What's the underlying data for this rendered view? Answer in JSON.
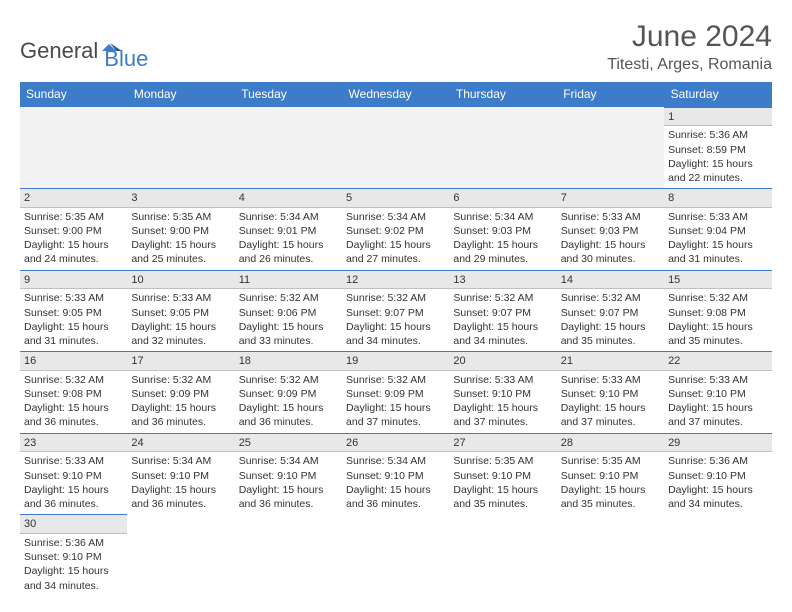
{
  "logo": {
    "text_general": "General",
    "text_blue": "Blue",
    "icon_color": "#3d7cc9"
  },
  "title": "June 2024",
  "location": "Titesti, Arges, Romania",
  "colors": {
    "header_bg": "#3d7cc9",
    "header_text": "#ffffff",
    "daynum_bg": "#e8e8e8",
    "text": "#333333",
    "border_blue": "#3d7cc9",
    "border_gray": "#bfbfbf"
  },
  "weekdays": [
    "Sunday",
    "Monday",
    "Tuesday",
    "Wednesday",
    "Thursday",
    "Friday",
    "Saturday"
  ],
  "weeks": [
    [
      null,
      null,
      null,
      null,
      null,
      null,
      {
        "n": "1",
        "sr": "Sunrise: 5:36 AM",
        "ss": "Sunset: 8:59 PM",
        "d1": "Daylight: 15 hours",
        "d2": "and 22 minutes."
      }
    ],
    [
      {
        "n": "2",
        "sr": "Sunrise: 5:35 AM",
        "ss": "Sunset: 9:00 PM",
        "d1": "Daylight: 15 hours",
        "d2": "and 24 minutes."
      },
      {
        "n": "3",
        "sr": "Sunrise: 5:35 AM",
        "ss": "Sunset: 9:00 PM",
        "d1": "Daylight: 15 hours",
        "d2": "and 25 minutes."
      },
      {
        "n": "4",
        "sr": "Sunrise: 5:34 AM",
        "ss": "Sunset: 9:01 PM",
        "d1": "Daylight: 15 hours",
        "d2": "and 26 minutes."
      },
      {
        "n": "5",
        "sr": "Sunrise: 5:34 AM",
        "ss": "Sunset: 9:02 PM",
        "d1": "Daylight: 15 hours",
        "d2": "and 27 minutes."
      },
      {
        "n": "6",
        "sr": "Sunrise: 5:34 AM",
        "ss": "Sunset: 9:03 PM",
        "d1": "Daylight: 15 hours",
        "d2": "and 29 minutes."
      },
      {
        "n": "7",
        "sr": "Sunrise: 5:33 AM",
        "ss": "Sunset: 9:03 PM",
        "d1": "Daylight: 15 hours",
        "d2": "and 30 minutes."
      },
      {
        "n": "8",
        "sr": "Sunrise: 5:33 AM",
        "ss": "Sunset: 9:04 PM",
        "d1": "Daylight: 15 hours",
        "d2": "and 31 minutes."
      }
    ],
    [
      {
        "n": "9",
        "sr": "Sunrise: 5:33 AM",
        "ss": "Sunset: 9:05 PM",
        "d1": "Daylight: 15 hours",
        "d2": "and 31 minutes."
      },
      {
        "n": "10",
        "sr": "Sunrise: 5:33 AM",
        "ss": "Sunset: 9:05 PM",
        "d1": "Daylight: 15 hours",
        "d2": "and 32 minutes."
      },
      {
        "n": "11",
        "sr": "Sunrise: 5:32 AM",
        "ss": "Sunset: 9:06 PM",
        "d1": "Daylight: 15 hours",
        "d2": "and 33 minutes."
      },
      {
        "n": "12",
        "sr": "Sunrise: 5:32 AM",
        "ss": "Sunset: 9:07 PM",
        "d1": "Daylight: 15 hours",
        "d2": "and 34 minutes."
      },
      {
        "n": "13",
        "sr": "Sunrise: 5:32 AM",
        "ss": "Sunset: 9:07 PM",
        "d1": "Daylight: 15 hours",
        "d2": "and 34 minutes."
      },
      {
        "n": "14",
        "sr": "Sunrise: 5:32 AM",
        "ss": "Sunset: 9:07 PM",
        "d1": "Daylight: 15 hours",
        "d2": "and 35 minutes."
      },
      {
        "n": "15",
        "sr": "Sunrise: 5:32 AM",
        "ss": "Sunset: 9:08 PM",
        "d1": "Daylight: 15 hours",
        "d2": "and 35 minutes."
      }
    ],
    [
      {
        "n": "16",
        "sr": "Sunrise: 5:32 AM",
        "ss": "Sunset: 9:08 PM",
        "d1": "Daylight: 15 hours",
        "d2": "and 36 minutes."
      },
      {
        "n": "17",
        "sr": "Sunrise: 5:32 AM",
        "ss": "Sunset: 9:09 PM",
        "d1": "Daylight: 15 hours",
        "d2": "and 36 minutes."
      },
      {
        "n": "18",
        "sr": "Sunrise: 5:32 AM",
        "ss": "Sunset: 9:09 PM",
        "d1": "Daylight: 15 hours",
        "d2": "and 36 minutes."
      },
      {
        "n": "19",
        "sr": "Sunrise: 5:32 AM",
        "ss": "Sunset: 9:09 PM",
        "d1": "Daylight: 15 hours",
        "d2": "and 37 minutes."
      },
      {
        "n": "20",
        "sr": "Sunrise: 5:33 AM",
        "ss": "Sunset: 9:10 PM",
        "d1": "Daylight: 15 hours",
        "d2": "and 37 minutes."
      },
      {
        "n": "21",
        "sr": "Sunrise: 5:33 AM",
        "ss": "Sunset: 9:10 PM",
        "d1": "Daylight: 15 hours",
        "d2": "and 37 minutes."
      },
      {
        "n": "22",
        "sr": "Sunrise: 5:33 AM",
        "ss": "Sunset: 9:10 PM",
        "d1": "Daylight: 15 hours",
        "d2": "and 37 minutes."
      }
    ],
    [
      {
        "n": "23",
        "sr": "Sunrise: 5:33 AM",
        "ss": "Sunset: 9:10 PM",
        "d1": "Daylight: 15 hours",
        "d2": "and 36 minutes."
      },
      {
        "n": "24",
        "sr": "Sunrise: 5:34 AM",
        "ss": "Sunset: 9:10 PM",
        "d1": "Daylight: 15 hours",
        "d2": "and 36 minutes."
      },
      {
        "n": "25",
        "sr": "Sunrise: 5:34 AM",
        "ss": "Sunset: 9:10 PM",
        "d1": "Daylight: 15 hours",
        "d2": "and 36 minutes."
      },
      {
        "n": "26",
        "sr": "Sunrise: 5:34 AM",
        "ss": "Sunset: 9:10 PM",
        "d1": "Daylight: 15 hours",
        "d2": "and 36 minutes."
      },
      {
        "n": "27",
        "sr": "Sunrise: 5:35 AM",
        "ss": "Sunset: 9:10 PM",
        "d1": "Daylight: 15 hours",
        "d2": "and 35 minutes."
      },
      {
        "n": "28",
        "sr": "Sunrise: 5:35 AM",
        "ss": "Sunset: 9:10 PM",
        "d1": "Daylight: 15 hours",
        "d2": "and 35 minutes."
      },
      {
        "n": "29",
        "sr": "Sunrise: 5:36 AM",
        "ss": "Sunset: 9:10 PM",
        "d1": "Daylight: 15 hours",
        "d2": "and 34 minutes."
      }
    ],
    [
      {
        "n": "30",
        "sr": "Sunrise: 5:36 AM",
        "ss": "Sunset: 9:10 PM",
        "d1": "Daylight: 15 hours",
        "d2": "and 34 minutes."
      },
      null,
      null,
      null,
      null,
      null,
      null
    ]
  ]
}
